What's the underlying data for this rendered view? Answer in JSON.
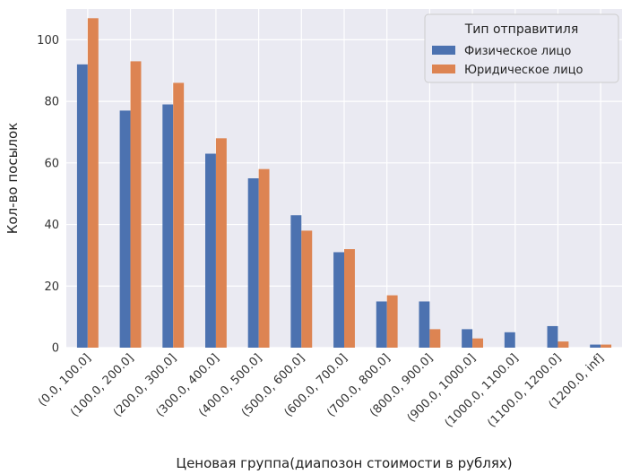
{
  "chart_data": {
    "type": "bar",
    "categories": [
      "(0.0, 100.0]",
      "(100.0, 200.0]",
      "(200.0, 300.0]",
      "(300.0, 400.0]",
      "(400.0, 500.0]",
      "(500.0, 600.0]",
      "(600.0, 700.0]",
      "(700.0, 800.0]",
      "(800.0, 900.0]",
      "(900.0, 1000.0]",
      "(1000.0, 1100.0]",
      "(1100.0, 1200.0]",
      "(1200.0, inf]"
    ],
    "series": [
      {
        "name": "Физическое лицо",
        "color": "#4c72b0",
        "values": [
          92,
          77,
          79,
          63,
          55,
          43,
          31,
          15,
          15,
          6,
          5,
          7,
          1
        ]
      },
      {
        "name": "Юридическое лицо",
        "color": "#dd8452",
        "values": [
          107,
          93,
          86,
          68,
          58,
          38,
          32,
          17,
          6,
          3,
          0,
          2,
          1
        ]
      }
    ],
    "xlabel": "Ценовая группа(диапозон стоимости в рублях)",
    "ylabel": "Кол-во посылок",
    "ylim": [
      0,
      110
    ],
    "yticks": [
      0,
      20,
      40,
      60,
      80,
      100
    ],
    "legend": {
      "title": "Тип отправитиля",
      "position": "top-right"
    },
    "grid": true,
    "background": "#eaeaf2"
  }
}
